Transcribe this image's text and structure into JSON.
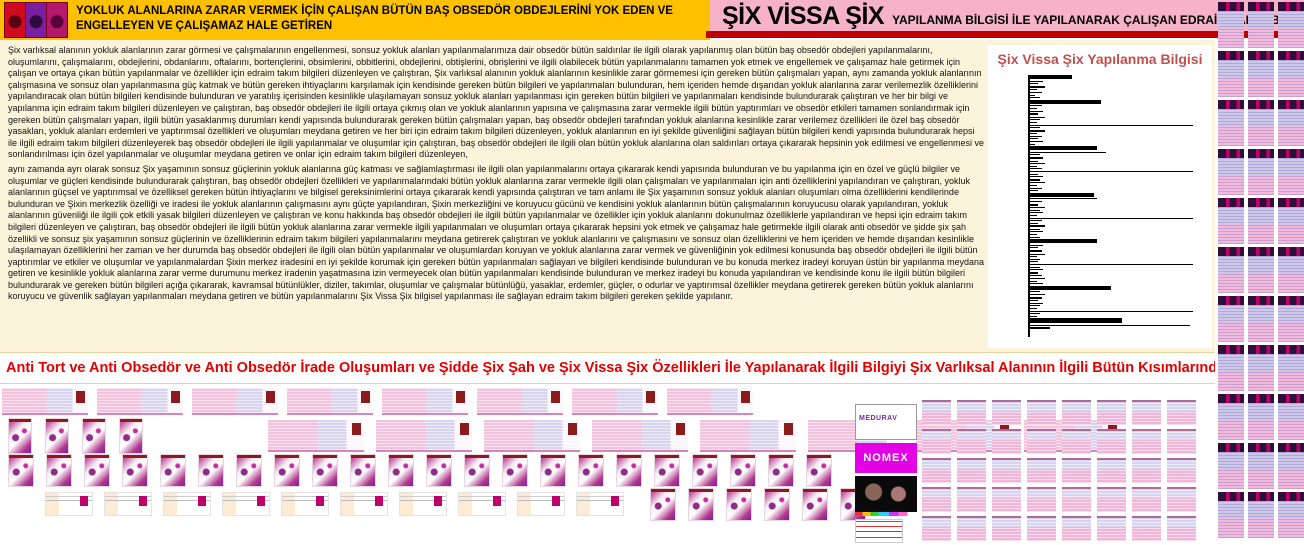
{
  "header": {
    "gold_banner": {
      "text": "YOKLUK ALANLARINA ZARAR VERMEK İÇİN ÇALIŞAN BÜTÜN BAŞ OBSEDÖR OBDEJLERİNİ YOK EDEN VE ENGELLEYEN VE ÇALIŞAMAZ HALE GETİREN"
    },
    "pink_banner": {
      "title": "ŞİX VİSSA ŞİX",
      "subtitle": "YAPILANMA BİLGİSİ İLE YAPILANARAK ÇALIŞAN EDRAİM TAKIM BİLGİLERİ"
    }
  },
  "body": {
    "paragraph1": "Şix varlıksal alanının yokluk alanlarının zarar görmesi ve çalışmalarının engellenmesi, sonsuz yokluk alanları yapılanmalarımıza dair obsedör bütün saldırılar ile ilgili olarak yapılanmış olan bütün baş obsedör obdejleri yapılanmalarını, oluşumlarını, çalışmalarını, obdejlerini, obdanlarını, oftalarını, bortençlerini, obsimlerini, obbitlerini, obdejlerini, obtişlerini, obrişlerini ve ilgili olabilecek bütün yapılanmalarını tamamen yok etmek ve engellemek ve çalışamaz hale getirmek için çalışan ve ortaya çıkan bütün yapılanmalar ve özellikler için edraim takım bilgileri düzenleyen ve çalıştıran, Şix varlıksal alanının yokluk alanlarının kesinlikle zarar görmemesi için gereken bütün çalışmaları yapan, aynı zamanda yokluk alanlarının çalışmasına ve sonsuz olan yapılanmasına güç katmak ve bütün gereken ihtiyaçlarını karşılamak için kendisinde gereken bütün bilgileri ve yapılanmaları bulunduran, hem içeriden hemde dışarıdan yokluk alanlarına zarar verilemezlik özelliklerini yapılandıracak olan bütün bilgileri kendisinde bulunduran ve yaratılış içerisinden kesinlikle ulaşılamayan sonsuz yokluk alanları yapılanması için gereken bütün bilgileri ve yapılanmaları kendisinde bulundurarak çalıştıran ve her bir bilgi ve yapılanma için edraim takım bilgileri düzenleyen ve çalıştıran, baş obsedör obdejleri ile ilgili ortaya çıkmış olan ve yokluk alanlarının yapısına ve çalışmasına zarar vermekle ilgili bütün yaptırımları ve obsedör etkileri tamamen sonlandırmak için gereken bütün çalışmaları yapan, ilgili bütün yasaklanmış durumları kendi yapısında bulundurarak gereken bütün çalışmaları yapan, baş obsedör obdejleri tarafından yokluk alanlarına kesinlikle zarar verilemez özellikleri ile özel baş obsedör yasakları, yokluk alanları erdemleri ve yaptırımsal özellikleri ve oluşumları meydana getiren ve her biri için edraim takım bilgileri düzenleyen, yokluk alanlarının en iyi şekilde güvenliğini sağlayan bütün bilgileri kendi yapısında bulundurarak hepsi ile ilgili edraim takım bilgileri düzenleyerek baş obsedör obdejleri ile ilgili yapılanmalar ve oluşumlar için çalıştıran, baş obsedör obdejleri ile ilgili olan bütün yokluk alanlarına olan saldırıları ortaya çıkararak hepsinin yok edilmesi ve engellenmesi ve sonlandırılması için özel yapılanmalar ve oluşumlar meydana getiren ve onlar için edraim takım bilgileri düzenleyen,",
    "paragraph2": "aynı zamanda ayrı olarak sonsuz Şix yaşamının sonsuz güçlerinin yokluk alanlarına güç katması ve sağlamlaştırması ile ilgili olan yapılanmalarını ortaya çıkararak kendi yapısında bulunduran ve bu yapılanma için en özel ve güçlü bilgiler ve oluşumlar ve güçleri kendisinde bulundurarak çalıştıran, baş obsedör obdejleri özellikleri ve yapılanmalarındaki bütün yokluk alanlarına zarar vermekle ilgili olan çalışmaları ve yapılanmaları için anti özelliklerini yapılandıran ve çalıştıran, yokluk alanlarının güçsel ve yaptırımsal ve özelliksel gereken bütün ihtiyaçlarını ve bilgisel gereksinimlerini ortaya çıkararak kendi yapısında çalıştıran ve tam anlamı ile Şix yaşamının sonsuz yokluk alanları oluşumları olma özelliklerini kendilerinde bulunduran ve Şixin merkezlik özelliği ve iradesi ile yokluk alanlarının çalışmasını aynı güçte yapılandıran, Şixin merkezliğini ve koruyucu gücünü ve kendisini yokluk alanlarının bütün çalışmalarının koruyucusu olarak yapılandıran, yokluk alanlarının güvenliği ile ilgili çok etkili yasak bilgileri düzenleyen ve çalıştıran ve konu hakkında baş obsedör obdejleri ile ilgili bütün yapılanmalar ve özellikler için yokluk alanlarını dokunulmaz özelliklerle yapılandıran ve hepsi için edraim takım bilgileri düzenleyen ve çalıştıran, baş obsedör obdejleri ile ilgili bütün yokluk alanlarına zarar vermekle ilgili yapılanmaları ve oluşumları ortaya çıkararak hepsini yok etmek ve çalışamaz hale getirmekle ilgili olarak anti obsedör ve şidde şix şah özellikli ve sonsuz şix yaşamının sonsuz güçlerinin ve özelliklerinin edraim takım bilgileri yapılanmalarını meydana getirerek çalıştıran ve yokluk alanlarını ve çalışmasını ve sonsuz olan özelliklerini ve hem içeriden ve hemde dışarıdan kesinlikle ulaşılamayan özelliklerini her zaman ve her durumda baş obsedör obdejleri ile ilgili olan bütün yapılanmalar ve oluşumlardan koruyan ve yokluk alanlarına zarar vermek ve güvenliğinin yok edilmesi konusunda baş obsedör obdejleri ile ilgili bütün yaptırımlar ve etkiler ve oluşumlar ve yapılanmalardan Şixin merkez iradesini en iyi şekilde korumak için gereken bütün yapılanmaları sağlayan ve bilgileri kendisinde bulunduran ve bu konuda merkez iradeyi koruyan üstün bir yapılanma meydana getiren ve kesinlikle yokluk alanlarına zarar verme durumunu merkez iradenin yaşatmasına izin vermeyecek olan bütün yapılanmaları kendisinde bulunduran ve merkez iradeyi bu konuda yapılandıran ve kendisinde konu ile ilgili bütün bilgileri bulundurarak ve gereken bütün bilgileri açığa çıkararak, kavramsal bütünlükler, diziler, takımlar, oluşumlar ve çalışmalar bütünlüğü, yasaklar, erdemler, güçler, o odurlar ve yaptırımsal özellikler meydana getirerek gereken bütün yokluk alanlarını koruyucu ve güvenlik sağlayan yapılanmaları meydana getiren ve bütün yapılanmalarını Şix Vissa Şix bilgisel yapılanması ile sağlayan edraim takım bilgileri gereken şekilde yapılanır."
  },
  "chart_data": {
    "type": "bar",
    "orientation": "horizontal",
    "title": "Şix Vissa Şix Yapılanma Bilgisi",
    "xlabel": "",
    "ylabel": "",
    "xlim": [
      0,
      100
    ],
    "grid": false,
    "legend": "none",
    "bar_color": "#000000",
    "note": "dense stack of unlabeled horizontal black bars; value = relative length %, second number = bar thickness px",
    "bars": [
      [
        25,
        4
      ],
      [
        8,
        1
      ],
      [
        5,
        1
      ],
      [
        9,
        2
      ],
      [
        4,
        1
      ],
      [
        7,
        1
      ],
      [
        3,
        1
      ],
      [
        6,
        1
      ],
      [
        42,
        4
      ],
      [
        7,
        1
      ],
      [
        4,
        1
      ],
      [
        8,
        1
      ],
      [
        5,
        2
      ],
      [
        9,
        1
      ],
      [
        6,
        1
      ],
      [
        4,
        1
      ],
      [
        97,
        1
      ],
      [
        6,
        1
      ],
      [
        9,
        2
      ],
      [
        4,
        1
      ],
      [
        7,
        1
      ],
      [
        5,
        1
      ],
      [
        8,
        1
      ],
      [
        3,
        1
      ],
      [
        40,
        4
      ],
      [
        45,
        1
      ],
      [
        6,
        1
      ],
      [
        8,
        2
      ],
      [
        5,
        1
      ],
      [
        9,
        1
      ],
      [
        4,
        1
      ],
      [
        7,
        1
      ],
      [
        97,
        1
      ],
      [
        5,
        1
      ],
      [
        8,
        1
      ],
      [
        6,
        2
      ],
      [
        9,
        1
      ],
      [
        4,
        1
      ],
      [
        7,
        1
      ],
      [
        5,
        1
      ],
      [
        38,
        4
      ],
      [
        40,
        1
      ],
      [
        7,
        1
      ],
      [
        5,
        2
      ],
      [
        9,
        1
      ],
      [
        6,
        1
      ],
      [
        8,
        1
      ],
      [
        4,
        1
      ],
      [
        97,
        1
      ],
      [
        7,
        1
      ],
      [
        5,
        1
      ],
      [
        9,
        2
      ],
      [
        6,
        1
      ],
      [
        8,
        1
      ],
      [
        4,
        1
      ],
      [
        6,
        1
      ],
      [
        40,
        4
      ],
      [
        8,
        1
      ],
      [
        5,
        1
      ],
      [
        7,
        2
      ],
      [
        9,
        1
      ],
      [
        4,
        1
      ],
      [
        6,
        1
      ],
      [
        5,
        1
      ],
      [
        97,
        1
      ],
      [
        6,
        1
      ],
      [
        8,
        1
      ],
      [
        5,
        2
      ],
      [
        7,
        1
      ],
      [
        9,
        1
      ],
      [
        4,
        1
      ],
      [
        8,
        1
      ],
      [
        48,
        4
      ],
      [
        6,
        1
      ],
      [
        9,
        1
      ],
      [
        7,
        2
      ],
      [
        5,
        1
      ],
      [
        8,
        1
      ],
      [
        6,
        1
      ],
      [
        4,
        1
      ],
      [
        97,
        1
      ],
      [
        6,
        1
      ],
      [
        4,
        1
      ],
      [
        55,
        5
      ],
      [
        95,
        1
      ],
      [
        12,
        2
      ]
    ]
  },
  "banner2": {
    "text": "Anti Tort ve Anti Obsedör ve Anti Obsedör İrade Oluşumları ve Şidde Şix Şah ve Şix Vissa Şix Özellikleri İle Yapılanarak İlgili Bilgiyi Şix Varlıksal Alanının İlgili Bütün Kısımlarında Uygulatan Edraim Takım Bilgileri Yapılanması"
  },
  "cards": {
    "medurav_label": "MEDURAV",
    "nomex_label": "NOMEX"
  },
  "collage": {
    "row_a_cards": 8,
    "row_b_thumbs": 4,
    "row_b_cards": 8,
    "row_c_thumbs": 22,
    "row_d_minicards": 10,
    "row_d_thumbs": 6,
    "stamp_cards": 40,
    "right_cert_cards": 33
  },
  "colors": {
    "gold_banner": "#FFC000",
    "pink_banner": "#F6B2C8",
    "red_strip": "#C00000",
    "cream_panel": "#FCF3DB",
    "banner2_text": "#E30000",
    "chart_title": "#C0504D",
    "chart_bars": "#000000"
  }
}
